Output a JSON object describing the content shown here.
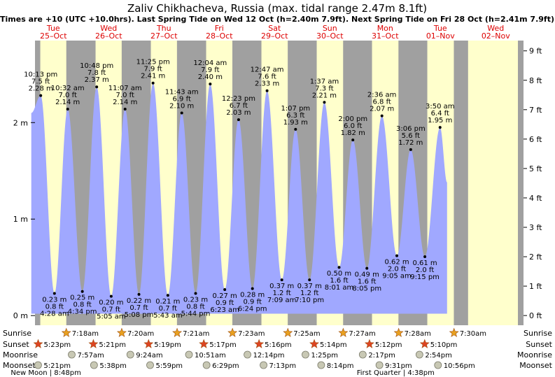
{
  "chart_data": {
    "type": "area",
    "title": "Zaliv Chikhacheva, Russia (max. tidal range 2.47m 8.1ft)",
    "subtitle": "Times are +10 (UTC +10.0hrs). Last Spring Tide on Wed 12 Oct (h=2.40m 7.9ft). Next Spring Tide on Fri 28 Oct (h=2.41m 7.9ft)",
    "ylim_m": [
      -0.1,
      2.85
    ],
    "ylim_ft": [
      -0.33,
      9.35
    ],
    "yticks_m": [
      {
        "v": 0,
        "label": "0 m"
      },
      {
        "v": 1,
        "label": "1 m"
      },
      {
        "v": 2,
        "label": "2 m"
      }
    ],
    "yticks_ft": [
      {
        "v": 0,
        "label": "0 ft"
      },
      {
        "v": 1,
        "label": "1 ft"
      },
      {
        "v": 2,
        "label": "2 ft"
      },
      {
        "v": 3,
        "label": "3 ft"
      },
      {
        "v": 4,
        "label": "4 ft"
      },
      {
        "v": 5,
        "label": "5 ft"
      },
      {
        "v": 6,
        "label": "6 ft"
      },
      {
        "v": 7,
        "label": "7 ft"
      },
      {
        "v": 8,
        "label": "8 ft"
      },
      {
        "v": 9,
        "label": "9 ft"
      }
    ],
    "days": [
      {
        "dow": "Tue",
        "date": "25–Oct"
      },
      {
        "dow": "Wed",
        "date": "26–Oct"
      },
      {
        "dow": "Thu",
        "date": "27–Oct"
      },
      {
        "dow": "Fri",
        "date": "28–Oct"
      },
      {
        "dow": "Sat",
        "date": "29–Oct"
      },
      {
        "dow": "Sun",
        "date": "30–Oct"
      },
      {
        "dow": "Mon",
        "date": "31–Oct"
      },
      {
        "dow": "Tue",
        "date": "01–Nov"
      },
      {
        "dow": "Wed",
        "date": "02–Nov"
      }
    ],
    "nights": [
      [
        0.0,
        0.2625
      ],
      [
        0.7333,
        1.2625
      ],
      [
        1.735,
        2.2625
      ],
      [
        2.735,
        3.2625
      ],
      [
        3.7367,
        4.2625
      ],
      [
        4.7383,
        5.2625
      ],
      [
        5.74,
        6.2625
      ],
      [
        6.7408,
        7.2625
      ],
      [
        7.7425,
        8.0
      ]
    ],
    "tides": [
      {
        "t": 0.1,
        "time": "",
        "m": 2.1,
        "ft": "",
        "m_label": "",
        "type": "start"
      },
      {
        "t": 0.2708,
        "time": "10:13 pm",
        "m": 2.28,
        "ft": "7.5 ft",
        "m_label": "2.28 m",
        "type": "high"
      },
      {
        "t": 0.5194,
        "time": "4:28 am",
        "m": 0.23,
        "ft": "0.8 ft",
        "m_label": "0.23 m",
        "type": "low"
      },
      {
        "t": 0.7583,
        "time": "10:32 am",
        "m": 2.14,
        "ft": "7.0 ft",
        "m_label": "2.14 m",
        "type": "high"
      },
      {
        "t": 1.0236,
        "time": "4:34 pm",
        "m": 0.25,
        "ft": "0.8 ft",
        "m_label": "0.25 m",
        "type": "low"
      },
      {
        "t": 1.2833,
        "time": "10:48 pm",
        "m": 2.37,
        "ft": "7.8 ft",
        "m_label": "2.37 m",
        "type": "high"
      },
      {
        "t": 1.5451,
        "time": "5:05 am",
        "m": 0.2,
        "ft": "0.7 ft",
        "m_label": "0.20 m",
        "type": "low"
      },
      {
        "t": 1.7965,
        "time": "11:07 am",
        "m": 2.14,
        "ft": "7.0 ft",
        "m_label": "2.14 m",
        "type": "high"
      },
      {
        "t": 2.0472,
        "time": "5:08 pm",
        "m": 0.22,
        "ft": "0.7 ft",
        "m_label": "0.22 m",
        "type": "low"
      },
      {
        "t": 2.3021,
        "time": "11:25 pm",
        "m": 2.41,
        "ft": "7.9 ft",
        "m_label": "2.41 m",
        "type": "high"
      },
      {
        "t": 2.5701,
        "time": "5:43 am",
        "m": 0.21,
        "ft": "0.7 ft",
        "m_label": "0.21 m",
        "type": "low"
      },
      {
        "t": 2.8215,
        "time": "11:43 am",
        "m": 2.1,
        "ft": "6.9 ft",
        "m_label": "2.10 m",
        "type": "high"
      },
      {
        "t": 3.0722,
        "time": "5:44 pm",
        "m": 0.23,
        "ft": "0.8 ft",
        "m_label": "0.23 m",
        "type": "low"
      },
      {
        "t": 3.3361,
        "time": "12:04 am",
        "m": 2.4,
        "ft": "7.9 ft",
        "m_label": "2.40 m",
        "type": "high"
      },
      {
        "t": 3.5993,
        "time": "6:23 am",
        "m": 0.27,
        "ft": "0.9 ft",
        "m_label": "0.27 m",
        "type": "low"
      },
      {
        "t": 3.8493,
        "time": "12:23 pm",
        "m": 2.03,
        "ft": "6.7 ft",
        "m_label": "2.03 m",
        "type": "high"
      },
      {
        "t": 4.1,
        "time": "6:24 pm",
        "m": 0.28,
        "ft": "0.9 ft",
        "m_label": "0.28 m",
        "type": "low"
      },
      {
        "t": 4.3646,
        "time": "12:47 am",
        "m": 2.33,
        "ft": "7.6 ft",
        "m_label": "2.33 m",
        "type": "high"
      },
      {
        "t": 4.6313,
        "time": "7:09 am",
        "m": 0.37,
        "ft": "1.2 ft",
        "m_label": "0.37 m",
        "type": "low"
      },
      {
        "t": 4.8799,
        "time": "1:07 pm",
        "m": 1.93,
        "ft": "6.3 ft",
        "m_label": "1.93 m",
        "type": "high"
      },
      {
        "t": 5.1319,
        "time": "7:10 pm",
        "m": 0.37,
        "ft": "1.2 ft",
        "m_label": "0.37 m",
        "type": "low"
      },
      {
        "t": 5.4007,
        "time": "1:37 am",
        "m": 2.21,
        "ft": "7.3 ft",
        "m_label": "2.21 m",
        "type": "high"
      },
      {
        "t": 5.6674,
        "time": "8:01 am",
        "m": 0.5,
        "ft": "1.6 ft",
        "m_label": "0.50 m",
        "type": "low"
      },
      {
        "t": 5.9167,
        "time": "2:00 pm",
        "m": 1.82,
        "ft": "6.0 ft",
        "m_label": "1.82 m",
        "type": "high"
      },
      {
        "t": 6.1701,
        "time": "8:05 pm",
        "m": 0.49,
        "ft": "1.6 ft",
        "m_label": "0.49 m",
        "type": "low"
      },
      {
        "t": 6.4417,
        "time": "2:36 am",
        "m": 2.07,
        "ft": "6.8 ft",
        "m_label": "2.07 m",
        "type": "high"
      },
      {
        "t": 6.7118,
        "time": "9:05 am",
        "m": 0.62,
        "ft": "2.0 ft",
        "m_label": "0.62 m",
        "type": "low"
      },
      {
        "t": 6.9625,
        "time": "3:06 pm",
        "m": 1.72,
        "ft": "5.6 ft",
        "m_label": "1.72 m",
        "type": "high"
      },
      {
        "t": 7.2188,
        "time": "9:15 pm",
        "m": 0.61,
        "ft": "2.0 ft",
        "m_label": "0.61 m",
        "type": "low"
      },
      {
        "t": 7.4931,
        "time": "3:50 am",
        "m": 1.95,
        "ft": "6.4 ft",
        "m_label": "1.95 m",
        "type": "high"
      },
      {
        "t": 7.62,
        "time": "",
        "m": 1.38,
        "ft": "",
        "m_label": "",
        "type": "end"
      }
    ],
    "sunrise": [
      {
        "t": 0.7333,
        "label": "7:18am"
      },
      {
        "t": 1.7361,
        "label": "7:20am"
      },
      {
        "t": 2.7375,
        "label": "7:21am"
      },
      {
        "t": 3.7389,
        "label": "7:23am"
      },
      {
        "t": 4.7403,
        "label": "7:25am"
      },
      {
        "t": 5.7417,
        "label": "7:27am"
      },
      {
        "t": 6.7444,
        "label": "7:28am"
      },
      {
        "t": 7.7458,
        "label": "7:30am"
      }
    ],
    "sunset": [
      {
        "t": 0.2243,
        "label": "5:23pm"
      },
      {
        "t": 1.2229,
        "label": "5:21pm"
      },
      {
        "t": 2.2215,
        "label": "5:19pm"
      },
      {
        "t": 3.2201,
        "label": "5:17pm"
      },
      {
        "t": 4.2194,
        "label": "5:16pm"
      },
      {
        "t": 5.2181,
        "label": "5:14pm"
      },
      {
        "t": 6.2167,
        "label": "5:12pm"
      },
      {
        "t": 7.2153,
        "label": "5:10pm"
      }
    ],
    "moonrise": [
      {
        "t": 0.8313,
        "label": "7:57am"
      },
      {
        "t": 1.8917,
        "label": "9:24am"
      },
      {
        "t": 2.9521,
        "label": "10:51am"
      },
      {
        "t": 4.0097,
        "label": "12:14pm"
      },
      {
        "t": 5.059,
        "label": "1:25pm"
      },
      {
        "t": 6.0951,
        "label": "2:17pm"
      },
      {
        "t": 7.1208,
        "label": "2:54pm"
      }
    ],
    "moonset": [
      {
        "t": 0.2229,
        "label": "5:21pm"
      },
      {
        "t": 1.2347,
        "label": "5:38pm"
      },
      {
        "t": 2.2493,
        "label": "5:59pm"
      },
      {
        "t": 3.2701,
        "label": "6:29pm"
      },
      {
        "t": 4.3007,
        "label": "7:13pm"
      },
      {
        "t": 5.3431,
        "label": "8:14pm"
      },
      {
        "t": 6.3965,
        "label": "9:31pm"
      },
      {
        "t": 7.4556,
        "label": "10:56pm"
      }
    ],
    "row_labels": {
      "sunrise": "Sunrise",
      "sunset": "Sunset",
      "moonrise": "Moonrise",
      "moonset": "Moonset"
    },
    "moon_phases": [
      {
        "t": 0.365,
        "label": "New Moon | 8:48pm"
      },
      {
        "t": 6.69,
        "label": "First Quarter | 4:38pm"
      }
    ],
    "colors": {
      "day": "#ffffcc",
      "night": "#a0a0a0",
      "water": "#a0a8ff",
      "sidebar": "#a0a0a0",
      "date_red": "#dd0000",
      "sun": "#e8a020",
      "sunset": "#dd4422",
      "moon": "#c8c8b4"
    }
  }
}
